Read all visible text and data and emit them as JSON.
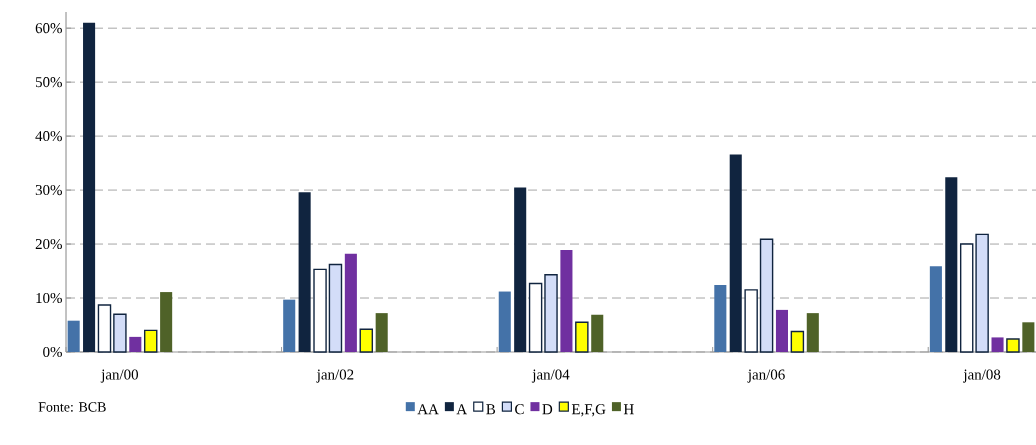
{
  "chart_data": {
    "type": "bar",
    "categories": [
      "jan/00",
      "jan/02",
      "jan/04",
      "jan/06",
      "jan/08"
    ],
    "series": [
      {
        "name": "AA",
        "color": "#4472a8",
        "values": [
          5.8,
          9.7,
          11.2,
          12.4,
          15.9
        ]
      },
      {
        "name": "A",
        "color": "#10243f",
        "values": [
          61.0,
          29.6,
          30.5,
          36.6,
          32.4
        ]
      },
      {
        "name": "B",
        "color": "#ffffff",
        "values": [
          8.7,
          15.3,
          12.7,
          11.5,
          20.0
        ]
      },
      {
        "name": "C",
        "color": "#d3ddf8",
        "values": [
          7.0,
          16.2,
          14.3,
          20.9,
          21.8
        ]
      },
      {
        "name": "D",
        "color": "#7030a0",
        "values": [
          2.8,
          18.2,
          18.9,
          7.8,
          2.7
        ]
      },
      {
        "name": "E,F,G",
        "color": "#ffff00",
        "values": [
          4.0,
          4.2,
          5.5,
          3.8,
          2.4
        ]
      },
      {
        "name": "H",
        "color": "#4f6228",
        "values": [
          11.1,
          7.2,
          6.9,
          7.2,
          5.5
        ]
      }
    ],
    "ylim": [
      0,
      63
    ],
    "yticks": [
      {
        "value": 0,
        "label": "0%"
      },
      {
        "value": 10,
        "label": "10%"
      },
      {
        "value": 20,
        "label": "20%"
      },
      {
        "value": 30,
        "label": "30%"
      },
      {
        "value": 40,
        "label": "40%"
      },
      {
        "value": 50,
        "label": "50%"
      },
      {
        "value": 60,
        "label": "60%"
      }
    ],
    "grid": "y",
    "legend": "bottom",
    "annotations": [
      "Fonte: BCB"
    ]
  }
}
